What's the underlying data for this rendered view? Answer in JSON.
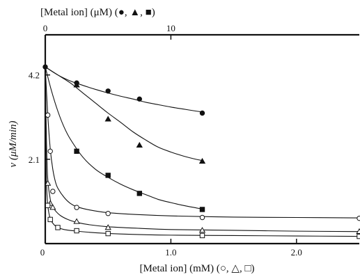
{
  "chart_data": {
    "type": "scatter",
    "title": "",
    "ylabel": "v (μM/min)",
    "ylim": [
      0,
      5.2
    ],
    "y_ticks": [
      {
        "value": 2.1,
        "label": "2.1"
      },
      {
        "value": 4.2,
        "label": "4.2"
      }
    ],
    "xlabel_bottom": "[Metal ion] (mM) (○, △, □)",
    "xlim_bottom": [
      0,
      2.5
    ],
    "x_ticks_bottom": [
      {
        "value": 0,
        "label": "0"
      },
      {
        "value": 1.0,
        "label": "1.0"
      },
      {
        "value": 2.0,
        "label": "2.0"
      }
    ],
    "xlabel_top": "[Metal ion] (μM) (●, ▲, ■)",
    "xlim_top": [
      0,
      25
    ],
    "x_ticks_top": [
      {
        "value": 0,
        "label": "0"
      },
      {
        "value": 10,
        "label": "10"
      }
    ],
    "series": [
      {
        "axis": "top",
        "marker": "circle",
        "filled": true,
        "x": [
          0,
          2.5,
          5,
          7.5,
          12.5
        ],
        "y": [
          4.4,
          4.0,
          3.8,
          3.6,
          3.25
        ],
        "curve": [
          [
            0,
            4.4
          ],
          [
            1,
            4.2
          ],
          [
            2,
            4.05
          ],
          [
            3,
            3.94
          ],
          [
            4,
            3.84
          ],
          [
            5,
            3.75
          ],
          [
            6,
            3.67
          ],
          [
            7,
            3.6
          ],
          [
            8,
            3.52
          ],
          [
            9,
            3.46
          ],
          [
            10,
            3.4
          ],
          [
            11,
            3.35
          ],
          [
            12,
            3.3
          ],
          [
            12.5,
            3.28
          ]
        ]
      },
      {
        "axis": "top",
        "marker": "triangle",
        "filled": true,
        "x": [
          2.5,
          5,
          7.5,
          12.5
        ],
        "y": [
          3.95,
          3.1,
          2.45,
          2.05
        ],
        "curve": [
          [
            0,
            4.4
          ],
          [
            1,
            4.2
          ],
          [
            2,
            4.0
          ],
          [
            3,
            3.75
          ],
          [
            4,
            3.5
          ],
          [
            5,
            3.25
          ],
          [
            6,
            3.02
          ],
          [
            7,
            2.78
          ],
          [
            8,
            2.58
          ],
          [
            9,
            2.4
          ],
          [
            10,
            2.28
          ],
          [
            11,
            2.18
          ],
          [
            12,
            2.1
          ],
          [
            12.5,
            2.07
          ]
        ]
      },
      {
        "axis": "top",
        "marker": "square",
        "filled": true,
        "x": [
          2.5,
          5,
          7.5,
          12.5
        ],
        "y": [
          2.3,
          1.7,
          1.25,
          0.85
        ],
        "curve": [
          [
            0,
            4.4
          ],
          [
            0.5,
            3.8
          ],
          [
            1,
            3.3
          ],
          [
            1.5,
            2.9
          ],
          [
            2,
            2.6
          ],
          [
            3,
            2.15
          ],
          [
            4,
            1.85
          ],
          [
            5,
            1.65
          ],
          [
            6,
            1.48
          ],
          [
            7,
            1.34
          ],
          [
            8,
            1.22
          ],
          [
            9,
            1.1
          ],
          [
            10,
            1.02
          ],
          [
            11,
            0.95
          ],
          [
            12,
            0.89
          ],
          [
            12.5,
            0.86
          ]
        ]
      },
      {
        "axis": "bottom",
        "marker": "circle",
        "filled": false,
        "x": [
          0.02,
          0.04,
          0.06,
          0.25,
          0.5,
          1.25,
          2.5
        ],
        "y": [
          3.2,
          2.3,
          1.3,
          0.9,
          0.75,
          0.65,
          0.63
        ],
        "curve": [
          [
            0,
            4.4
          ],
          [
            0.02,
            3.2
          ],
          [
            0.04,
            2.35
          ],
          [
            0.06,
            1.85
          ],
          [
            0.08,
            1.55
          ],
          [
            0.1,
            1.38
          ],
          [
            0.15,
            1.15
          ],
          [
            0.2,
            1.0
          ],
          [
            0.25,
            0.92
          ],
          [
            0.35,
            0.84
          ],
          [
            0.5,
            0.77
          ],
          [
            0.75,
            0.72
          ],
          [
            1.0,
            0.69
          ],
          [
            1.5,
            0.66
          ],
          [
            2.0,
            0.65
          ],
          [
            2.5,
            0.64
          ]
        ]
      },
      {
        "axis": "bottom",
        "marker": "triangle",
        "filled": false,
        "x": [
          0.02,
          0.04,
          0.06,
          0.25,
          0.5,
          1.25,
          2.5
        ],
        "y": [
          1.5,
          1.0,
          0.9,
          0.55,
          0.4,
          0.33,
          0.3
        ],
        "curve": [
          [
            0,
            4.4
          ],
          [
            0.01,
            2.5
          ],
          [
            0.02,
            1.6
          ],
          [
            0.04,
            1.1
          ],
          [
            0.06,
            0.92
          ],
          [
            0.08,
            0.82
          ],
          [
            0.12,
            0.7
          ],
          [
            0.18,
            0.6
          ],
          [
            0.25,
            0.53
          ],
          [
            0.35,
            0.47
          ],
          [
            0.5,
            0.42
          ],
          [
            0.75,
            0.38
          ],
          [
            1.0,
            0.35
          ],
          [
            1.5,
            0.33
          ],
          [
            2.0,
            0.31
          ],
          [
            2.5,
            0.3
          ]
        ]
      },
      {
        "axis": "bottom",
        "marker": "square",
        "filled": false,
        "x": [
          0.02,
          0.04,
          0.1,
          0.25,
          0.5,
          1.25,
          2.5
        ],
        "y": [
          0.95,
          0.6,
          0.4,
          0.32,
          0.25,
          0.2,
          0.18
        ],
        "curve": [
          [
            0,
            4.4
          ],
          [
            0.005,
            2.4
          ],
          [
            0.01,
            1.5
          ],
          [
            0.02,
            0.95
          ],
          [
            0.04,
            0.62
          ],
          [
            0.07,
            0.47
          ],
          [
            0.1,
            0.4
          ],
          [
            0.15,
            0.35
          ],
          [
            0.25,
            0.31
          ],
          [
            0.4,
            0.27
          ],
          [
            0.6,
            0.24
          ],
          [
            1.0,
            0.21
          ],
          [
            1.5,
            0.2
          ],
          [
            2.0,
            0.19
          ],
          [
            2.5,
            0.18
          ]
        ]
      }
    ]
  }
}
